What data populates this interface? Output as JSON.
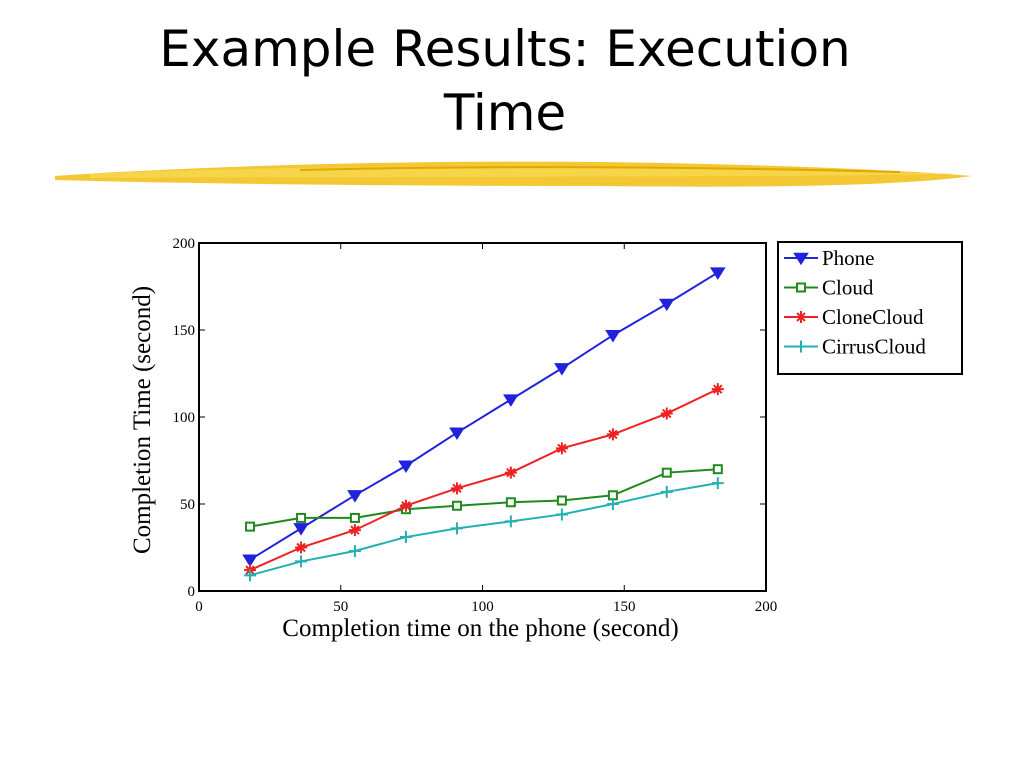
{
  "title": "Example Results: Execution Time",
  "chart_data": {
    "type": "line",
    "x_label": "Completion time on the phone (second)",
    "y_label": "Completion Time (second)",
    "xlim": [
      0,
      200
    ],
    "ylim": [
      0,
      200
    ],
    "xticks": [
      0,
      50,
      100,
      150,
      200
    ],
    "yticks": [
      0,
      50,
      100,
      150,
      200
    ],
    "legend_position": "upper right outside",
    "x": [
      18,
      36,
      55,
      73,
      91,
      110,
      128,
      146,
      165,
      183
    ],
    "series": [
      {
        "name": "Phone",
        "color": "#2222dd",
        "marker": "triangle-down",
        "values": [
          18,
          36,
          55,
          72,
          91,
          110,
          128,
          147,
          165,
          183
        ]
      },
      {
        "name": "Cloud",
        "color": "#1f8a1f",
        "marker": "square",
        "values": [
          37,
          42,
          42,
          47,
          49,
          51,
          52,
          55,
          68,
          70
        ]
      },
      {
        "name": "CloneCloud",
        "color": "#ee2222",
        "marker": "star",
        "values": [
          12,
          25,
          35,
          49,
          59,
          68,
          82,
          90,
          102,
          116
        ]
      },
      {
        "name": "CirrusCloud",
        "color": "#22b0b0",
        "marker": "plus",
        "values": [
          9,
          17,
          23,
          31,
          36,
          40,
          44,
          50,
          57,
          62
        ]
      }
    ]
  }
}
